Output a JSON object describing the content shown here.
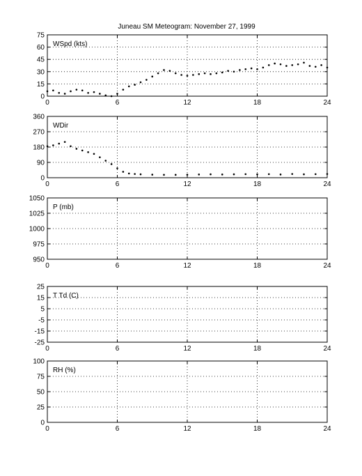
{
  "figure": {
    "title": "Juneau SM Meteogram:  November 27, 1999"
  },
  "chart_data": [
    {
      "type": "scatter",
      "panel_label": "WSpd (kts)",
      "xlim": [
        0,
        24
      ],
      "ylim": [
        0,
        75
      ],
      "xticks": [
        0,
        6,
        12,
        18,
        24
      ],
      "yticks": [
        0,
        15,
        30,
        45,
        60,
        75
      ],
      "grid": true,
      "series": [
        {
          "x": [
            0.0,
            0.5,
            1.0,
            1.5,
            2.0,
            2.5,
            3.0,
            3.5,
            4.0,
            4.5,
            5.0,
            5.5,
            6.0,
            6.5,
            7.0,
            7.5,
            8.0,
            8.5,
            9.0,
            9.5,
            10.0,
            10.5,
            11.0,
            11.5,
            12.0,
            12.5,
            13.0,
            13.5,
            14.0,
            14.5,
            15.0,
            15.5,
            16.0,
            16.5,
            17.0,
            17.5,
            18.0,
            18.5,
            19.0,
            19.5,
            20.0,
            20.5,
            21.0,
            21.5,
            22.0,
            22.5,
            23.0,
            23.5,
            24.0
          ],
          "y": [
            6,
            7,
            4,
            3,
            6,
            8,
            7,
            4,
            5,
            3,
            1,
            0,
            3,
            8,
            12,
            14,
            17,
            20,
            24,
            28,
            32,
            31,
            28,
            26,
            25,
            26,
            27,
            28,
            27,
            28,
            29,
            31,
            30,
            32,
            33,
            34,
            33,
            35,
            38,
            40,
            39,
            37,
            38,
            39,
            41,
            37,
            36,
            38,
            35
          ]
        }
      ]
    },
    {
      "type": "scatter",
      "panel_label": "WDir",
      "xlim": [
        0,
        24
      ],
      "ylim": [
        0,
        360
      ],
      "xticks": [
        0,
        6,
        12,
        18,
        24
      ],
      "yticks": [
        0,
        90,
        180,
        270,
        360
      ],
      "grid": true,
      "series": [
        {
          "x": [
            0.0,
            0.5,
            1.0,
            1.5,
            2.0,
            2.5,
            3.0,
            3.5,
            4.0,
            4.5,
            5.0,
            5.5,
            6.0,
            6.5,
            7.0,
            7.5,
            8.0,
            9.0,
            10.0,
            11.0,
            12.0,
            13.0,
            14.0,
            15.0,
            16.0,
            17.0,
            18.0,
            19.0,
            20.0,
            21.0,
            22.0,
            23.0,
            24.0
          ],
          "y": [
            185,
            190,
            200,
            210,
            185,
            170,
            160,
            150,
            140,
            120,
            100,
            80,
            55,
            35,
            25,
            22,
            20,
            18,
            17,
            17,
            18,
            19,
            20,
            19,
            20,
            21,
            20,
            21,
            19,
            22,
            20,
            21,
            22
          ]
        }
      ]
    },
    {
      "type": "scatter",
      "panel_label": "P (mb)",
      "xlim": [
        0,
        24
      ],
      "ylim": [
        950,
        1050
      ],
      "xticks": [
        0,
        6,
        12,
        18,
        24
      ],
      "yticks": [
        950,
        975,
        1000,
        1025,
        1050
      ],
      "grid": true,
      "series": []
    },
    {
      "type": "scatter",
      "panel_label": "T Td (C)",
      "xlim": [
        0,
        24
      ],
      "ylim": [
        -25,
        25
      ],
      "xticks": [
        0,
        6,
        12,
        18,
        24
      ],
      "yticks": [
        -25,
        -15,
        -5,
        5,
        15,
        25
      ],
      "grid": true,
      "series": []
    },
    {
      "type": "scatter",
      "panel_label": "RH (%)",
      "xlim": [
        0,
        24
      ],
      "ylim": [
        0,
        100
      ],
      "xticks": [
        0,
        6,
        12,
        18,
        24
      ],
      "yticks": [
        0,
        25,
        50,
        75,
        100
      ],
      "grid": true,
      "series": []
    }
  ]
}
